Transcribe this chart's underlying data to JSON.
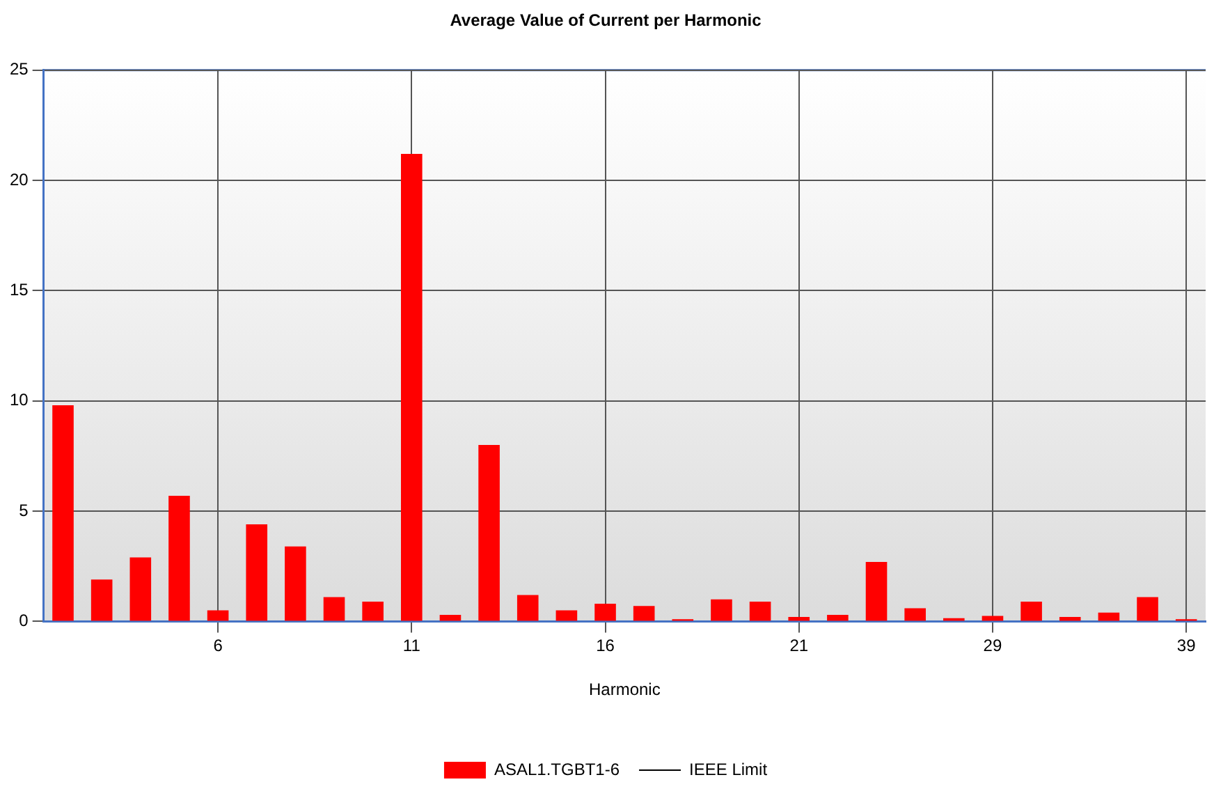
{
  "chart_data": {
    "type": "bar",
    "title": "Average Value of Current per Harmonic",
    "xlabel": "Harmonic",
    "categories": [
      null,
      null,
      null,
      null,
      "6",
      null,
      null,
      null,
      null,
      "11",
      null,
      null,
      null,
      null,
      "16",
      null,
      null,
      null,
      null,
      "21",
      null,
      null,
      null,
      null,
      "29",
      null,
      null,
      null,
      null,
      "39"
    ],
    "series": [
      {
        "name": "ASAL1.TGBT1-6",
        "color": "#ff0000",
        "values": [
          9.8,
          1.9,
          2.9,
          5.7,
          0.5,
          4.4,
          3.4,
          1.1,
          0.9,
          21.2,
          0.3,
          8.0,
          1.2,
          0.5,
          0.8,
          0.7,
          0.1,
          1.0,
          0.9,
          0.2,
          0.3,
          2.7,
          0.6,
          0.15,
          0.25,
          0.9,
          0.2,
          0.4,
          1.1,
          0.1
        ]
      },
      {
        "name": "IEEE Limit",
        "type": "line",
        "color": "#000000",
        "values": [
          null,
          null,
          null,
          null,
          null,
          null,
          null,
          null,
          null,
          null,
          null,
          null,
          null,
          null,
          null,
          null,
          null,
          null,
          null,
          null,
          null,
          null,
          null,
          null,
          null,
          null,
          null,
          null,
          null,
          null
        ]
      }
    ],
    "ylim": [
      0,
      25
    ],
    "yticks": [
      0,
      5,
      10,
      15,
      20,
      25
    ],
    "grid": true,
    "legend": "bottom"
  }
}
